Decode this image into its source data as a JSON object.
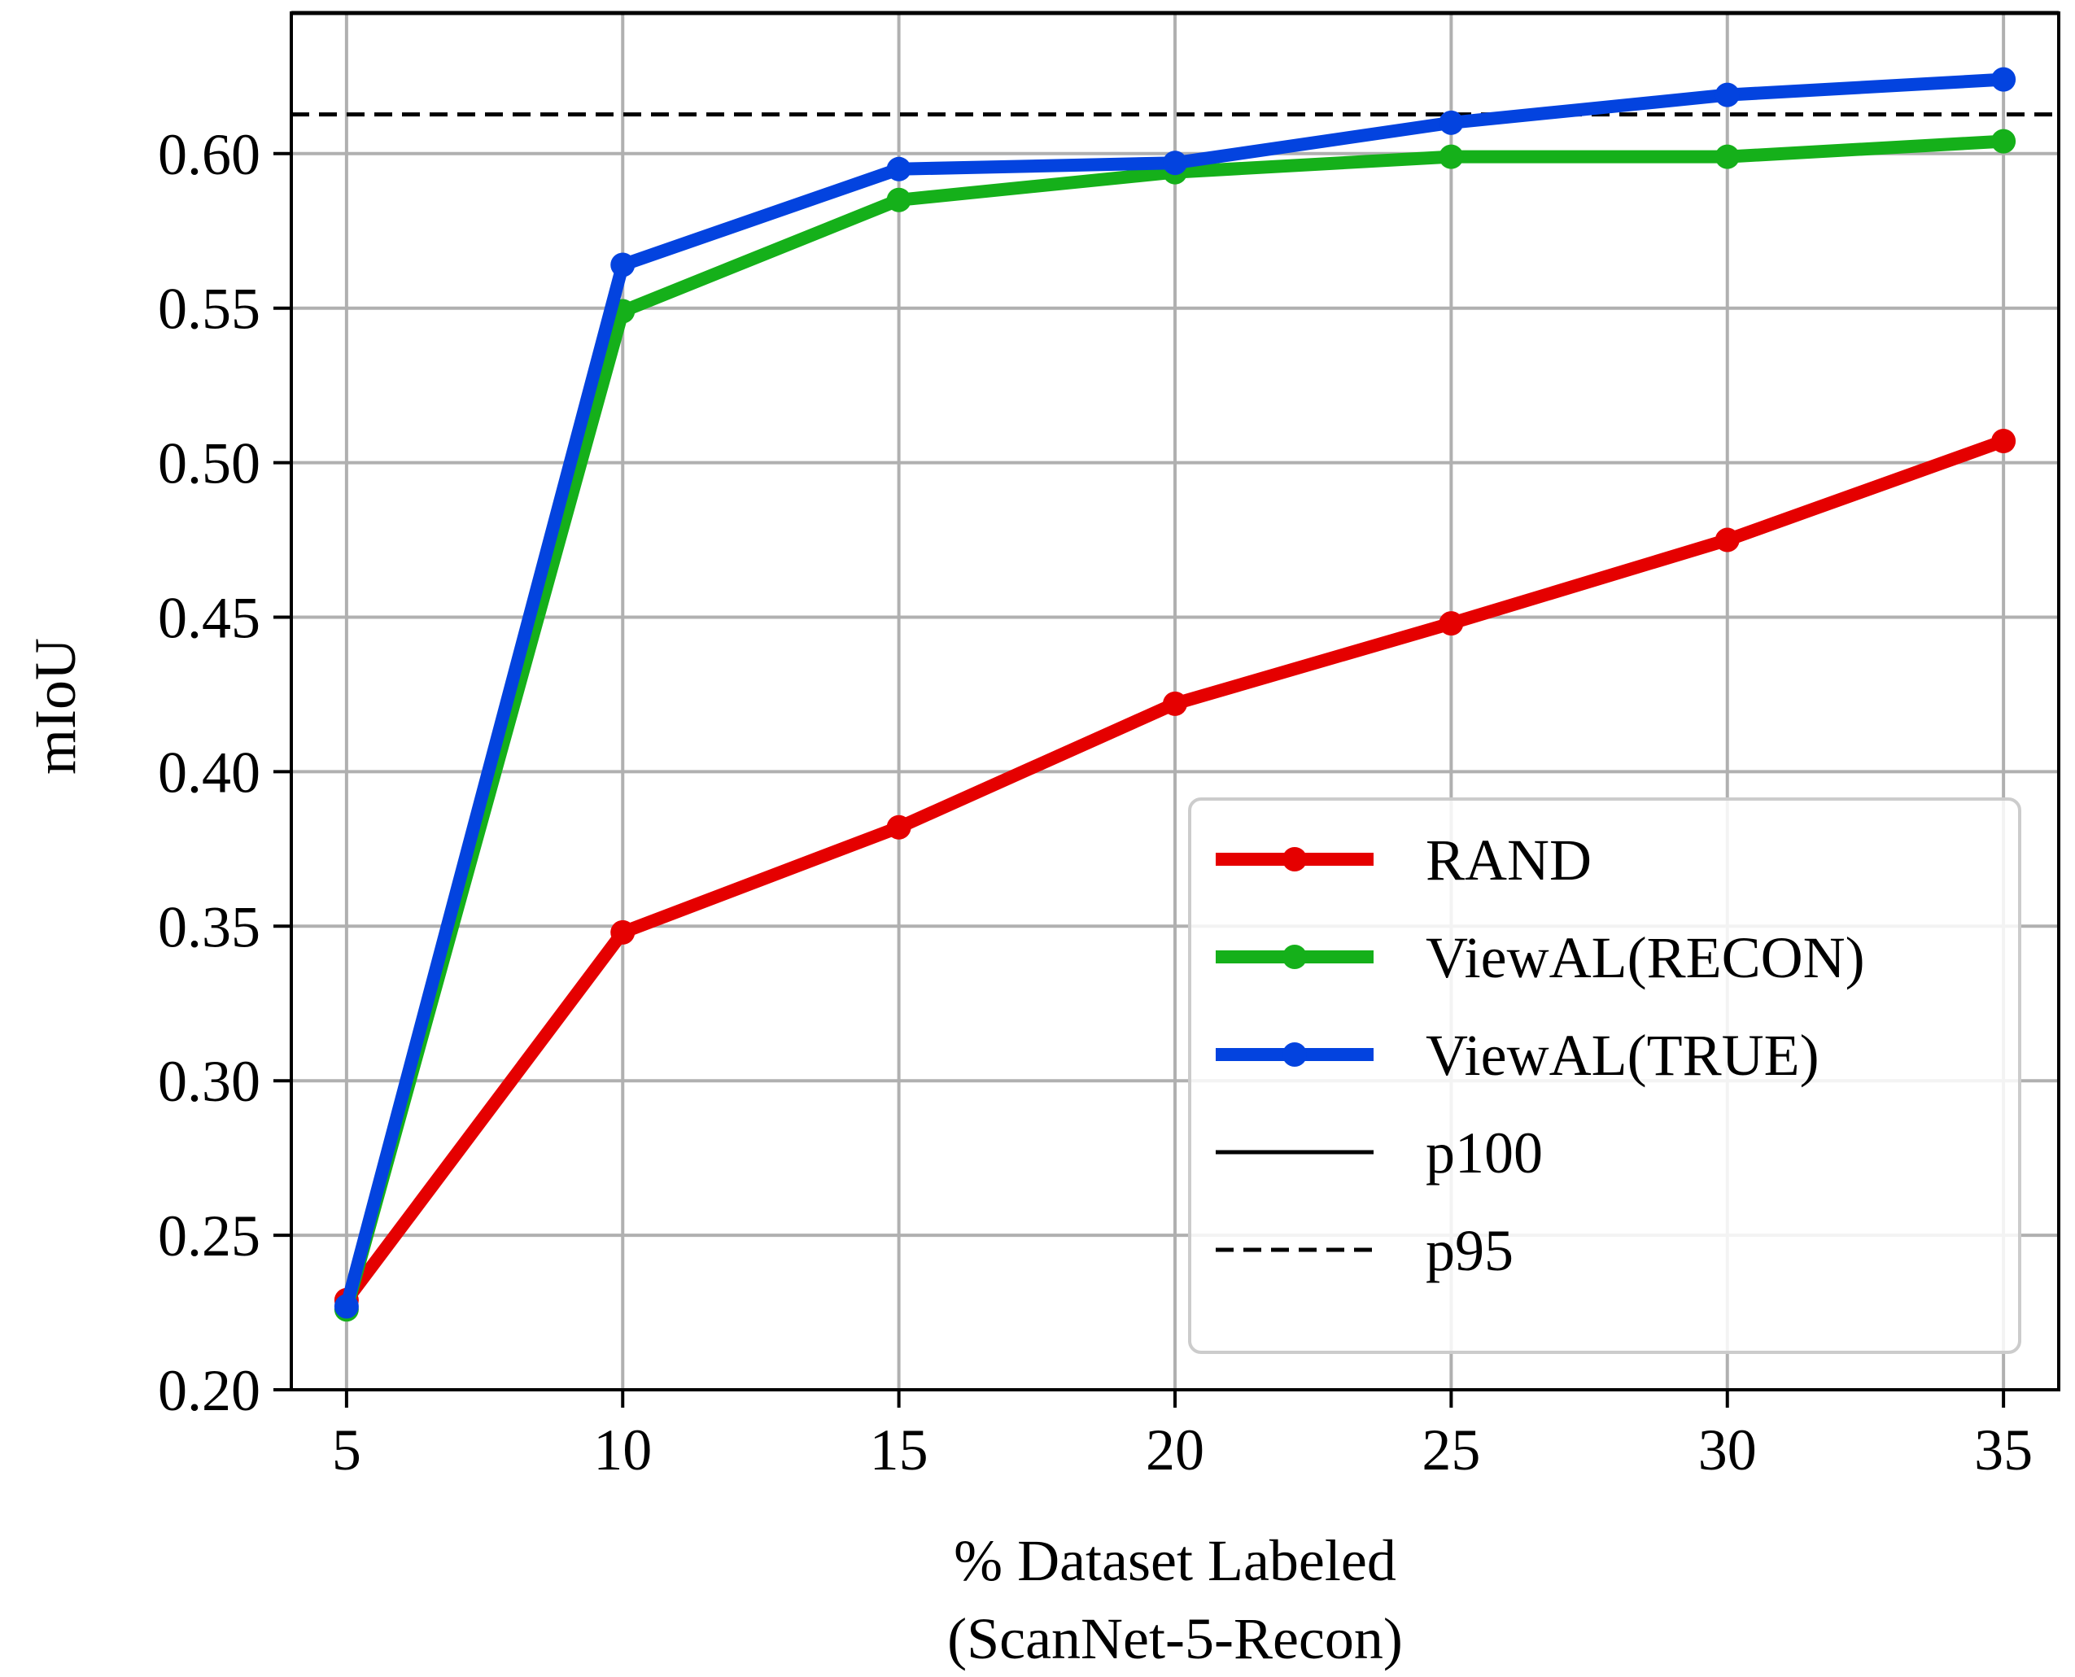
{
  "chart_data": {
    "type": "line",
    "title": "",
    "xlabel": "% Dataset Labeled",
    "xlabel_sub": "(ScanNet-5-Recon)",
    "ylabel": "mIoU",
    "x": [
      5,
      10,
      15,
      20,
      25,
      30,
      35
    ],
    "x_tick_labels": [
      "5",
      "10",
      "15",
      "20",
      "25",
      "30",
      "35"
    ],
    "y_tick_labels": [
      "0.20",
      "0.25",
      "0.30",
      "0.35",
      "0.40",
      "0.45",
      "0.50",
      "0.55",
      "0.60"
    ],
    "xlim": [
      4,
      36
    ],
    "ylim": [
      0.2,
      0.6455
    ],
    "grid": true,
    "legend_position": "lower-right",
    "series": [
      {
        "name": "RAND",
        "color": "#e50000",
        "marker": "circle",
        "values": [
          0.229,
          0.348,
          0.382,
          0.422,
          0.448,
          0.475,
          0.507
        ]
      },
      {
        "name": "ViewAL(RECON)",
        "color": "#15b01a",
        "marker": "circle",
        "values": [
          0.226,
          0.549,
          0.585,
          0.594,
          0.599,
          0.599,
          0.604
        ]
      },
      {
        "name": "ViewAL(TRUE)",
        "color": "#0343df",
        "marker": "circle",
        "values": [
          0.227,
          0.564,
          0.595,
          0.597,
          0.61,
          0.619,
          0.624
        ]
      }
    ],
    "reference_lines": [
      {
        "name": "p100",
        "color": "#000000",
        "style": "solid",
        "value": 0.6455
      },
      {
        "name": "p95",
        "color": "#000000",
        "style": "dashed",
        "value": 0.6127
      }
    ]
  }
}
